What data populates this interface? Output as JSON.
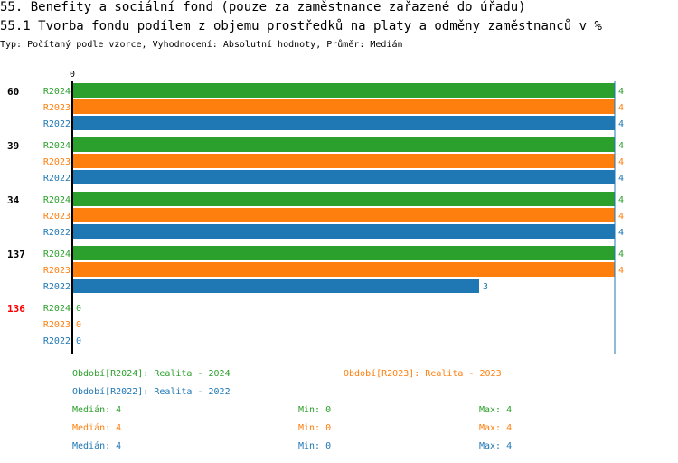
{
  "header": {
    "title": "55. Benefity a sociální fond (pouze za zaměstnance zařazené do úřadu)",
    "subtitle": "55.1 Tvorba fondu podílem z objemu prostředků na platy a odměny zaměstnanců v %",
    "meta": "Typ: Počítaný podle vzorce, Vyhodnocení: Absolutní hodnoty, Průměr: Medián"
  },
  "colors": {
    "R2024": "#2ca02c",
    "R2023": "#ff7f0e",
    "R2022": "#1f77b4",
    "highlight": "#ff0000"
  },
  "chart_data": {
    "type": "bar",
    "orientation": "horizontal",
    "xlim": [
      0,
      4
    ],
    "x_tick_labels": [
      "0"
    ],
    "groups": [
      {
        "label": "60",
        "highlight": false,
        "bars": [
          {
            "series": "R2024",
            "value": 4
          },
          {
            "series": "R2023",
            "value": 4
          },
          {
            "series": "R2022",
            "value": 4
          }
        ]
      },
      {
        "label": "39",
        "highlight": false,
        "bars": [
          {
            "series": "R2024",
            "value": 4
          },
          {
            "series": "R2023",
            "value": 4
          },
          {
            "series": "R2022",
            "value": 4
          }
        ]
      },
      {
        "label": "34",
        "highlight": false,
        "bars": [
          {
            "series": "R2024",
            "value": 4
          },
          {
            "series": "R2023",
            "value": 4
          },
          {
            "series": "R2022",
            "value": 4
          }
        ]
      },
      {
        "label": "137",
        "highlight": false,
        "bars": [
          {
            "series": "R2024",
            "value": 4
          },
          {
            "series": "R2023",
            "value": 4
          },
          {
            "series": "R2022",
            "value": 3
          }
        ]
      },
      {
        "label": "136",
        "highlight": true,
        "bars": [
          {
            "series": "R2024",
            "value": 0
          },
          {
            "series": "R2023",
            "value": 0
          },
          {
            "series": "R2022",
            "value": 0
          }
        ]
      }
    ]
  },
  "legend": {
    "periods": [
      {
        "series": "R2024",
        "text": "Období[R2024]: Realita - 2024"
      },
      {
        "series": "R2023",
        "text": "Období[R2023]: Realita - 2023"
      },
      {
        "series": "R2022",
        "text": "Období[R2022]: Realita - 2022"
      }
    ],
    "stats": [
      {
        "series": "R2024",
        "median": "Medián: 4",
        "min": "Min: 0",
        "max": "Max: 4"
      },
      {
        "series": "R2023",
        "median": "Medián: 4",
        "min": "Min: 0",
        "max": "Max: 4"
      },
      {
        "series": "R2022",
        "median": "Medián: 4",
        "min": "Min: 0",
        "max": "Max: 4"
      }
    ]
  }
}
